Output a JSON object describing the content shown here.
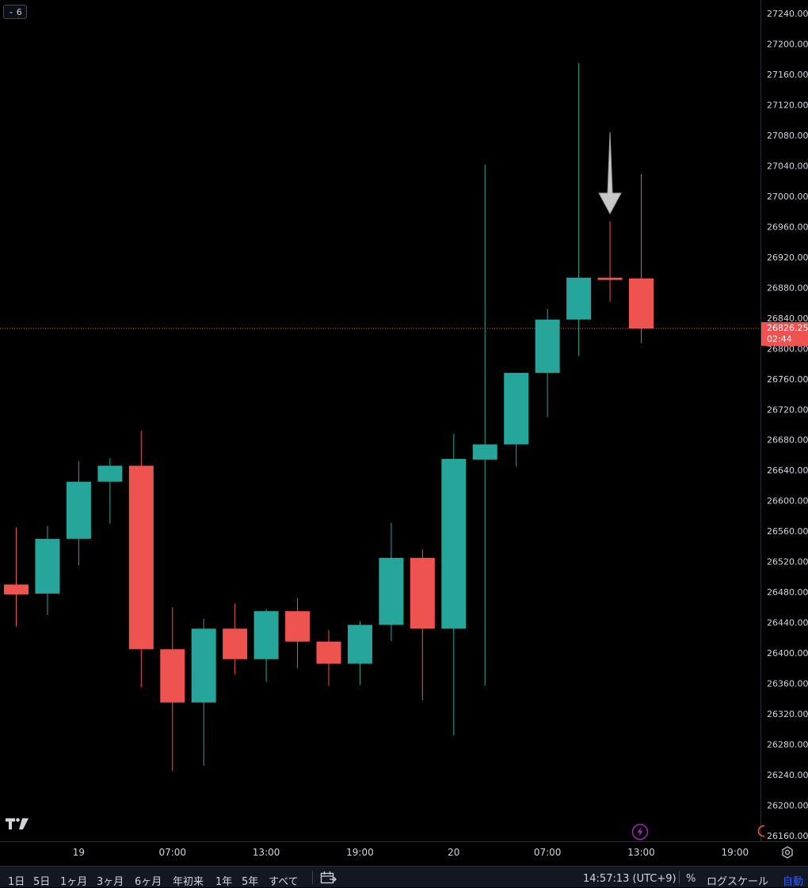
{
  "toolbar": {
    "hide_count": "6"
  },
  "price_axis": {
    "ticks": [
      "27240.00",
      "27200.00",
      "27160.00",
      "27120.00",
      "27080.00",
      "27040.00",
      "27000.00",
      "26960.00",
      "26920.00",
      "26880.00",
      "26840.00",
      "26800.00",
      "26760.00",
      "26720.00",
      "26680.00",
      "26640.00",
      "26600.00",
      "26560.00",
      "26520.00",
      "26480.00",
      "26440.00",
      "26400.00",
      "26360.00",
      "26320.00",
      "26280.00",
      "26240.00",
      "26200.00",
      "26160.00"
    ],
    "current_price": "26826.25",
    "countdown": "02:44"
  },
  "time_axis": {
    "labels": [
      "19",
      "07:00",
      "13:00",
      "19:00",
      "20",
      "07:00",
      "13:00",
      "19:00"
    ]
  },
  "bottom_bar": {
    "ranges": [
      "1日",
      "5日",
      "1ヶ月",
      "3ヶ月",
      "6ヶ月",
      "年初来",
      "1年",
      "5年",
      "すべて"
    ],
    "clock": "14:57:13 (UTC+9)",
    "percent": "%",
    "log_scale": "ログスケール",
    "auto": "自動"
  },
  "colors": {
    "up": "#26a69a",
    "down": "#ef5350",
    "background": "#000000",
    "price_line": "#ef5350",
    "annotation_arrow": "#c8c8c8"
  },
  "chart_data": {
    "type": "candlestick",
    "y_axis_range": [
      26150,
      27250
    ],
    "current_price": 26826.25,
    "annotation": "arrow pointing down at the doji candle",
    "candles": [
      {
        "open": 26490,
        "high": 26565,
        "low": 26435,
        "close": 26477
      },
      {
        "open": 26478,
        "high": 26567,
        "low": 26450,
        "close": 26550
      },
      {
        "open": 26550,
        "high": 26652,
        "low": 26515,
        "close": 26625
      },
      {
        "open": 26625,
        "high": 26656,
        "low": 26570,
        "close": 26646
      },
      {
        "open": 26646,
        "high": 26692,
        "low": 26355,
        "close": 26405
      },
      {
        "open": 26405,
        "high": 26460,
        "low": 26245,
        "close": 26335
      },
      {
        "open": 26335,
        "high": 26445,
        "low": 26252,
        "close": 26432
      },
      {
        "open": 26432,
        "high": 26465,
        "low": 26372,
        "close": 26392
      },
      {
        "open": 26392,
        "high": 26458,
        "low": 26362,
        "close": 26455
      },
      {
        "open": 26455,
        "high": 26472,
        "low": 26380,
        "close": 26415
      },
      {
        "open": 26415,
        "high": 26430,
        "low": 26357,
        "close": 26386
      },
      {
        "open": 26386,
        "high": 26442,
        "low": 26358,
        "close": 26437
      },
      {
        "open": 26437,
        "high": 26571,
        "low": 26416,
        "close": 26525
      },
      {
        "open": 26525,
        "high": 26536,
        "low": 26338,
        "close": 26432
      },
      {
        "open": 26432,
        "high": 26688,
        "low": 26292,
        "close": 26655
      },
      {
        "open": 26654,
        "high": 27042,
        "low": 26357,
        "close": 26674
      },
      {
        "open": 26674,
        "high": 26768,
        "low": 26645,
        "close": 26768
      },
      {
        "open": 26768,
        "high": 26852,
        "low": 26710,
        "close": 26838
      },
      {
        "open": 26838,
        "high": 27175,
        "low": 26790,
        "close": 26893
      },
      {
        "open": 26893,
        "high": 26967,
        "low": 26861,
        "close": 26890
      },
      {
        "open": 26892,
        "high": 27029,
        "low": 26807,
        "close": 26826.25
      }
    ]
  }
}
